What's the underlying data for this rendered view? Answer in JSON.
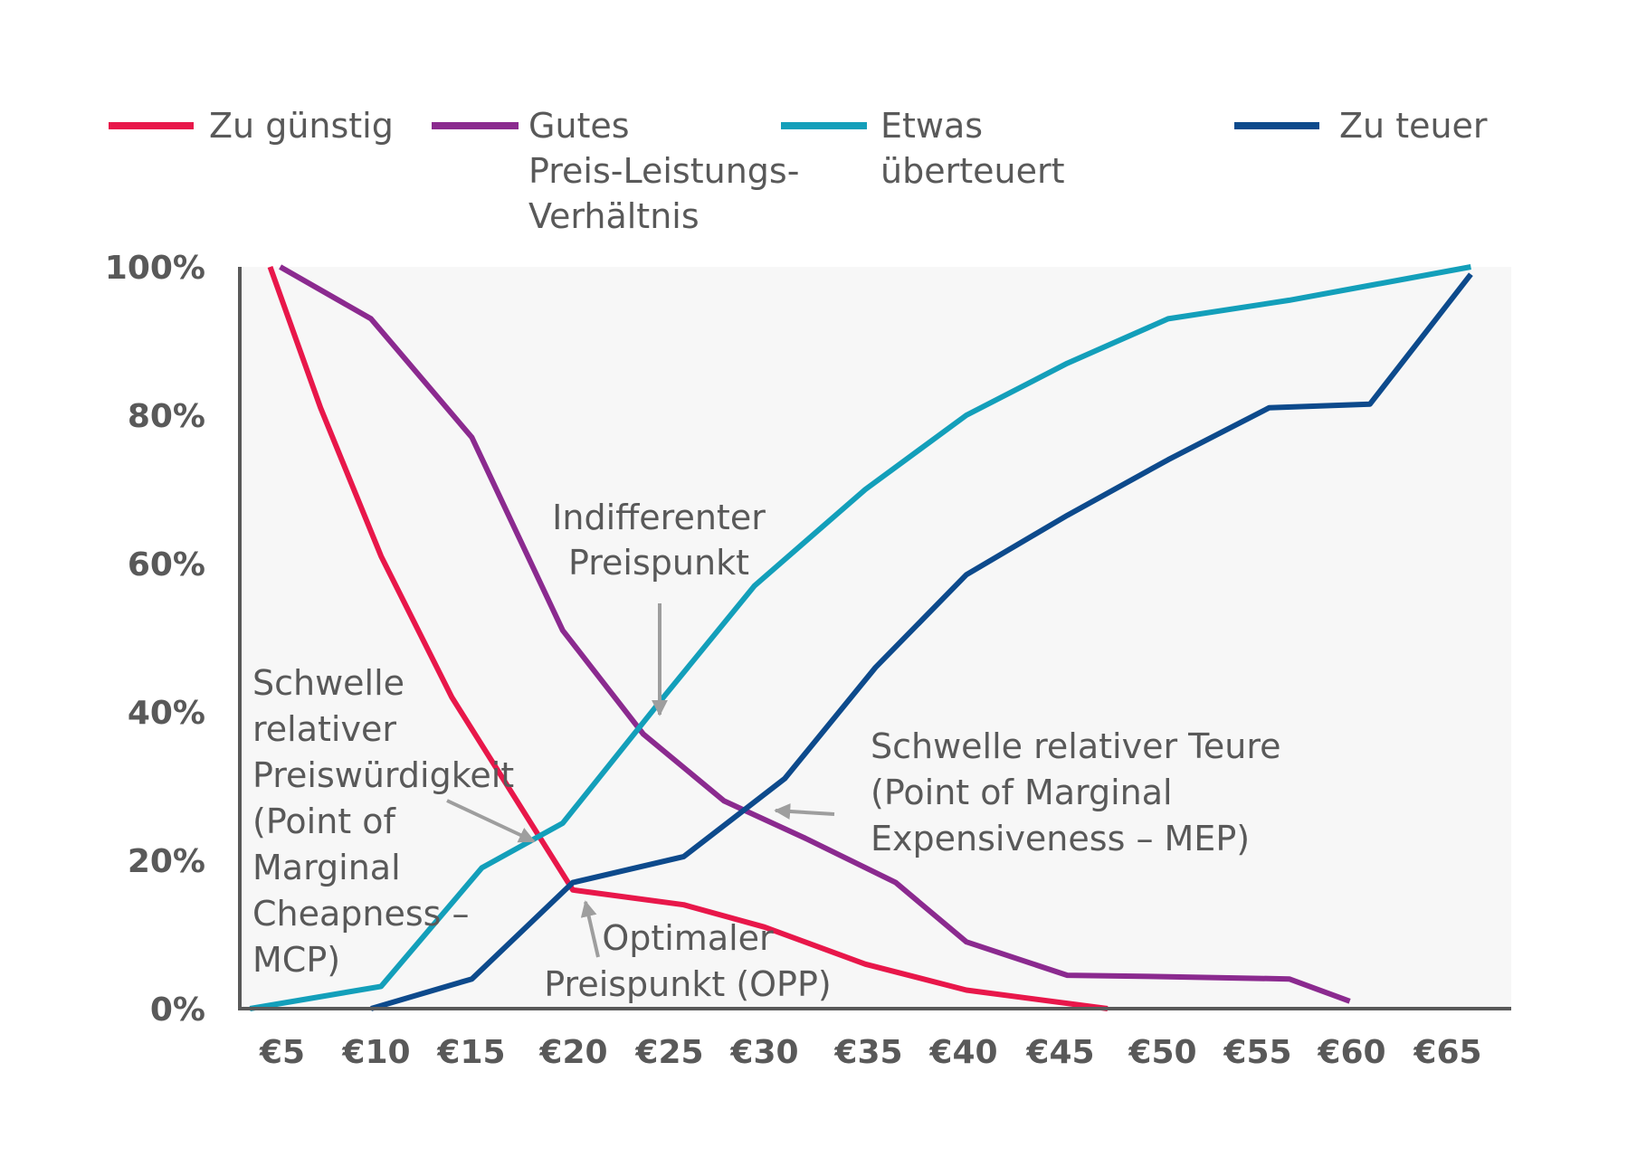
{
  "chart_data": {
    "type": "line",
    "title": "",
    "xlabel": "",
    "ylabel": "",
    "x_tick_labels": [
      "€5",
      "€10",
      "€15",
      "€20",
      "€25",
      "€30",
      "€35",
      "€40",
      "€45",
      "€50",
      "€55",
      "€60",
      "€65"
    ],
    "y_tick_labels": [
      "0%",
      "20%",
      "40%",
      "60%",
      "80%",
      "100%"
    ],
    "ylim": [
      0,
      100
    ],
    "xlim": [
      4,
      67
    ],
    "grid": false,
    "plot_background": "#f7f7f7",
    "legend_position": "top",
    "series": [
      {
        "name": "Zu günstig",
        "color": "#e8174a",
        "points": [
          [
            5.5,
            100
          ],
          [
            8,
            81
          ],
          [
            11,
            61
          ],
          [
            14.5,
            42
          ],
          [
            20.5,
            16
          ],
          [
            26,
            14
          ],
          [
            30,
            11
          ],
          [
            35,
            6
          ],
          [
            40,
            2.5
          ],
          [
            47,
            0
          ]
        ]
      },
      {
        "name": "Gutes Preis-Leistungs-Verhältnis",
        "color": "#8b2a8f",
        "points": [
          [
            6,
            100
          ],
          [
            10.5,
            93
          ],
          [
            15.5,
            77
          ],
          [
            20,
            51
          ],
          [
            24,
            37
          ],
          [
            28,
            28
          ],
          [
            32,
            23
          ],
          [
            36.5,
            17
          ],
          [
            40,
            9
          ],
          [
            45,
            4.5
          ],
          [
            50,
            4.3
          ],
          [
            56,
            4
          ],
          [
            59,
            1
          ]
        ]
      },
      {
        "name": "Etwas überteuert",
        "color": "#139fba",
        "points": [
          [
            4.5,
            0
          ],
          [
            11,
            3
          ],
          [
            16,
            19
          ],
          [
            20,
            25
          ],
          [
            25,
            42
          ],
          [
            29.5,
            57
          ],
          [
            35,
            70
          ],
          [
            40,
            80
          ],
          [
            45,
            87
          ],
          [
            50,
            93
          ],
          [
            56,
            95.5
          ],
          [
            60,
            97.5
          ],
          [
            65,
            100
          ]
        ]
      },
      {
        "name": "Zu teuer",
        "color": "#0d4a8c",
        "points": [
          [
            10.5,
            0
          ],
          [
            15.5,
            4
          ],
          [
            20.5,
            17
          ],
          [
            26,
            20.5
          ],
          [
            31,
            31
          ],
          [
            35.5,
            46
          ],
          [
            40,
            58.5
          ],
          [
            45,
            66.5
          ],
          [
            50,
            74
          ],
          [
            55,
            81
          ],
          [
            60,
            81.5
          ],
          [
            65,
            99
          ]
        ]
      }
    ],
    "annotations": [
      {
        "lines": [
          "Indifferenter",
          "Preispunkt"
        ]
      },
      {
        "lines": [
          "Schwelle",
          "relativer",
          "Preiswürdigkeit",
          "(Point of",
          "Marginal",
          "Cheapness –",
          "MCP)"
        ]
      },
      {
        "lines": [
          "Schwelle relativer Teure",
          "(Point of Marginal",
          "Expensiveness – MEP)"
        ]
      },
      {
        "lines": [
          "Optimaler",
          "Preispunkt (OPP)"
        ]
      }
    ]
  },
  "legend": [
    {
      "lines": [
        "Zu günstig"
      ],
      "color": "#e8174a"
    },
    {
      "lines": [
        "Gutes",
        "Preis-Leistungs-",
        "Verhältnis"
      ],
      "color": "#8b2a8f"
    },
    {
      "lines": [
        "Etwas",
        "überteuert"
      ],
      "color": "#139fba"
    },
    {
      "lines": [
        "Zu teuer"
      ],
      "color": "#0d4a8c"
    }
  ]
}
